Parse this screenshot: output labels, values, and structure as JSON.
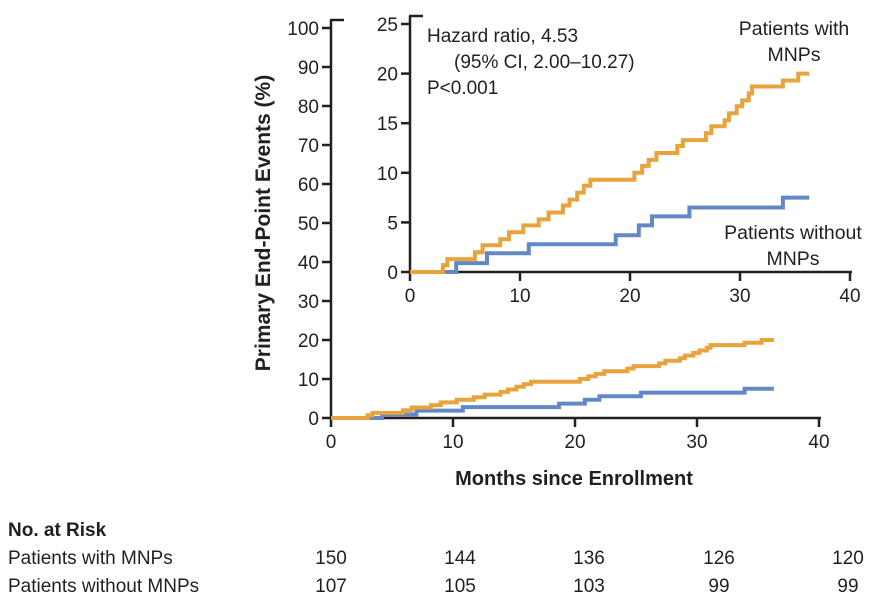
{
  "figure": {
    "y_axis_label": "Primary End-Point Events (%)",
    "x_axis_label": "Months since Enrollment"
  },
  "chart_data": {
    "type": "line",
    "subtype": "kaplan-meier-step",
    "title": "",
    "xlabel": "Months since Enrollment",
    "ylabel": "Primary End-Point Events (%)",
    "annotation": [
      "Hazard ratio, 4.53",
      "(95% CI, 2.00–10.27)",
      "P<0.001"
    ],
    "main_axis": {
      "xlim": [
        0,
        40
      ],
      "ylim": [
        0,
        100
      ],
      "x_ticks": [
        0,
        10,
        20,
        30,
        40
      ],
      "y_ticks": [
        0,
        10,
        20,
        30,
        40,
        50,
        60,
        70,
        80,
        90,
        100
      ],
      "grid": false
    },
    "inset_axis": {
      "xlim": [
        0,
        40
      ],
      "ylim": [
        0,
        25
      ],
      "x_ticks": [
        0,
        10,
        20,
        30,
        40
      ],
      "y_ticks": [
        0,
        5,
        10,
        15,
        20,
        25
      ],
      "grid": false
    },
    "series": [
      {
        "name": "Patients with MNPs",
        "label_lines": [
          "Patients with",
          "MNPs"
        ],
        "color": "#E8A33D",
        "steps": [
          [
            0,
            0
          ],
          [
            3,
            0.7
          ],
          [
            3.4,
            1.3
          ],
          [
            5.9,
            2
          ],
          [
            6.6,
            2.7
          ],
          [
            8.2,
            3.3
          ],
          [
            9,
            4
          ],
          [
            10.3,
            4.7
          ],
          [
            11.7,
            5.3
          ],
          [
            12.6,
            6
          ],
          [
            13.9,
            6.7
          ],
          [
            14.5,
            7.3
          ],
          [
            15.2,
            8
          ],
          [
            15.8,
            8.7
          ],
          [
            16.4,
            9.3
          ],
          [
            20.4,
            10
          ],
          [
            21.1,
            10.7
          ],
          [
            21.7,
            11.3
          ],
          [
            22.4,
            12
          ],
          [
            24.3,
            12.7
          ],
          [
            24.8,
            13.3
          ],
          [
            26.9,
            14
          ],
          [
            27.4,
            14.7
          ],
          [
            28.6,
            15.3
          ],
          [
            29,
            16
          ],
          [
            29.7,
            16.7
          ],
          [
            30.2,
            17.3
          ],
          [
            30.8,
            18
          ],
          [
            31.1,
            18.7
          ],
          [
            33.9,
            19.3
          ],
          [
            35.3,
            20
          ],
          [
            36.3,
            20
          ]
        ]
      },
      {
        "name": "Patients without MNPs",
        "label_lines": [
          "Patients without",
          "MNPs"
        ],
        "color": "#6289C6",
        "steps": [
          [
            0,
            0
          ],
          [
            4.2,
            0.9
          ],
          [
            7,
            1.9
          ],
          [
            10.8,
            2.8
          ],
          [
            18.7,
            3.7
          ],
          [
            20.8,
            4.7
          ],
          [
            22,
            5.6
          ],
          [
            25.4,
            6.5
          ],
          [
            33.9,
            7.5
          ],
          [
            36.3,
            7.5
          ]
        ]
      }
    ]
  },
  "risk_table": {
    "header": "No. at Risk",
    "rows": [
      {
        "label": "Patients with MNPs",
        "values": [
          "150",
          "144",
          "136",
          "126",
          "120"
        ]
      },
      {
        "label": "Patients without MNPs",
        "values": [
          "107",
          "105",
          "103",
          "99",
          "99"
        ]
      }
    ]
  },
  "colors": {
    "with_mnps": "#E8A33D",
    "without_mnps": "#6289C6",
    "axis_text": "#231F20"
  }
}
